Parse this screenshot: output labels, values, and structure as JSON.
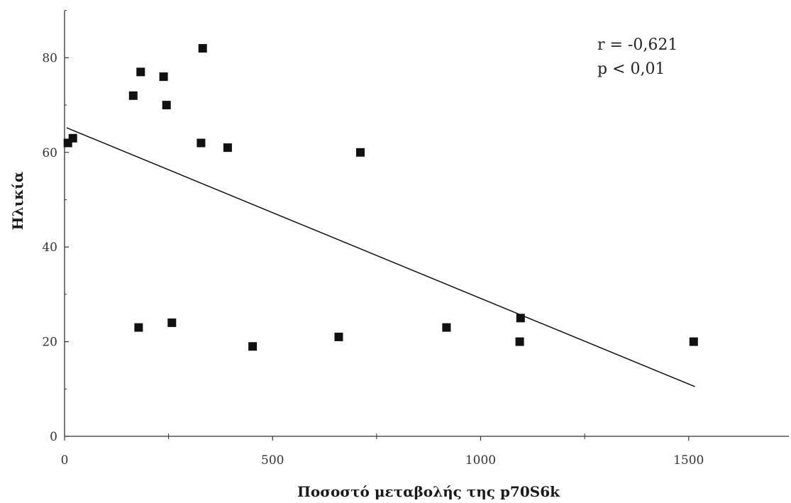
{
  "chart_data": {
    "type": "scatter",
    "title": "",
    "xlabel": "Ποσοστό μεταβολής της p70S6k",
    "ylabel": "Ηλικία",
    "xlim": [
      0,
      1750
    ],
    "ylim": [
      0,
      90
    ],
    "x_ticks": [
      0,
      500,
      1000,
      1500
    ],
    "x_tick_labels": [
      "0",
      "500",
      "1000",
      "1500"
    ],
    "x_minor_ticks": [
      250,
      750,
      1250
    ],
    "y_ticks": [
      0,
      20,
      40,
      60,
      80
    ],
    "y_tick_labels": [
      "0",
      "20",
      "40",
      "60",
      "80"
    ],
    "grid": false,
    "series": [
      {
        "points": [
          {
            "x": 8,
            "y": 62
          },
          {
            "x": 20,
            "y": 63
          },
          {
            "x": 165,
            "y": 72
          },
          {
            "x": 183,
            "y": 77
          },
          {
            "x": 238,
            "y": 76
          },
          {
            "x": 245,
            "y": 70
          },
          {
            "x": 328,
            "y": 62
          },
          {
            "x": 332,
            "y": 82
          },
          {
            "x": 392,
            "y": 61
          },
          {
            "x": 711,
            "y": 60
          },
          {
            "x": 178,
            "y": 23
          },
          {
            "x": 258,
            "y": 24
          },
          {
            "x": 452,
            "y": 19
          },
          {
            "x": 659,
            "y": 21
          },
          {
            "x": 918,
            "y": 23
          },
          {
            "x": 1096,
            "y": 25
          },
          {
            "x": 1094,
            "y": 20
          },
          {
            "x": 1512,
            "y": 20
          }
        ]
      }
    ],
    "trendline": {
      "x": [
        5,
        1515
      ],
      "y": [
        65.2,
        10.5
      ]
    },
    "annotations": {
      "r_text": "r = -0,621",
      "p_text": "p < 0,01"
    },
    "colors": {
      "marker": "#111111",
      "line": "#111111",
      "axis": "#333333"
    }
  }
}
